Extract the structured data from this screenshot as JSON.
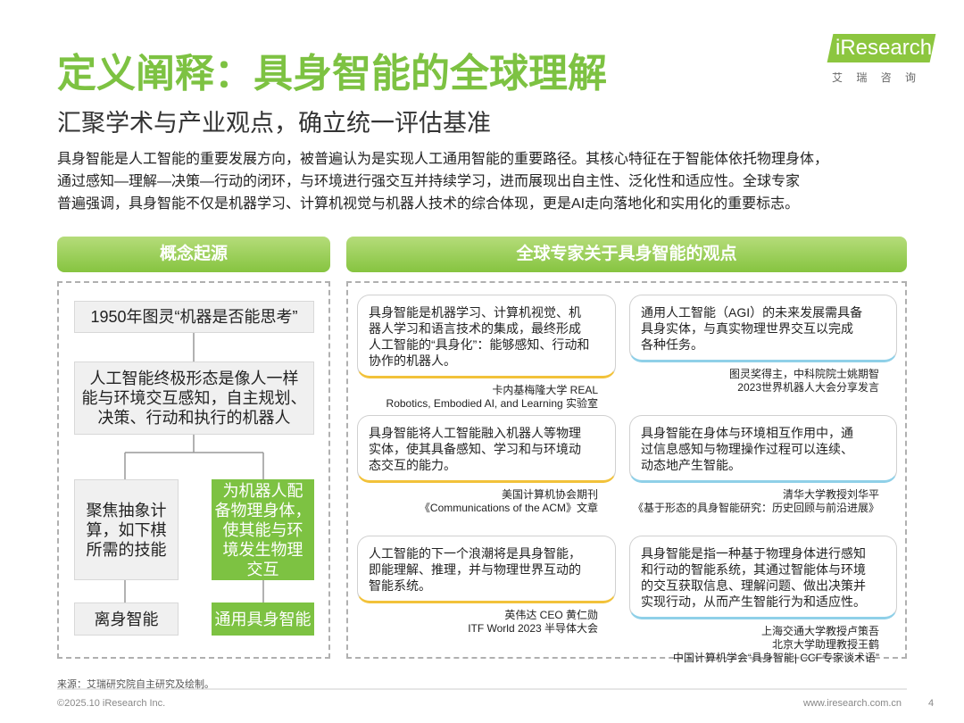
{
  "header": {
    "title": "定义阐释：具身智能的全球理解",
    "subtitle": "汇聚学术与产业观点，确立统一评估基准",
    "logo": "iResearch",
    "logo_sub": "艾 瑞 咨 询"
  },
  "intro": {
    "lines": [
      "具身智能是人工智能的重要发展方向，被普遍认为是实现人工通用智能的重要路径。其核心特征在于智能体依托物理身体，",
      "通过感知—理解—决策—行动的闭环，与环境进行强交互并持续学习，进而展现出自主性、泛化性和适应性。全球专家",
      "普遍强调，具身智能不仅是机器学习、计算机视觉与机器人技术的综合体现，更是AI走向落地化和实用化的重要标志。"
    ]
  },
  "left": {
    "title": "概念起源",
    "boxes": [
      {
        "lines": [
          "1950年图灵“机器是否能思考”"
        ]
      },
      {
        "lines": [
          "人工智能终极形态是像人一样",
          "能与环境交互感知，自主规划、",
          "决策、行动和执行的机器人"
        ]
      },
      {
        "lines": [
          "聚焦抽象计",
          "算，如下棋",
          "所需的技能"
        ]
      },
      {
        "lines": [
          "为机器人配",
          "备物理身体，",
          "使其能与环",
          "境发生物理",
          "交互"
        ]
      },
      {
        "lines": [
          "离身智能"
        ]
      },
      {
        "lines": [
          "通用具身智能"
        ]
      }
    ]
  },
  "right": {
    "title": "全球专家关于具身智能的观点",
    "quotes": [
      {
        "lines": [
          "具身智能是机器学习、计算机视觉、机",
          "器人学习和语言技术的集成，最终形成",
          "人工智能的“具身化”：能够感知、行动和",
          "协作的机器人。"
        ],
        "source": [
          "卡内基梅隆大学 REAL",
          "Robotics, Embodied AI, and Learning 实验室"
        ]
      },
      {
        "lines": [
          "通用人工智能（AGI）的未来发展需具备",
          "具身实体，与真实物理世界交互以完成",
          "各种任务。"
        ],
        "source": [
          "图灵奖得主，中科院院士姚期智",
          "2023世界机器人大会分享发言"
        ]
      },
      {
        "lines": [
          "具身智能将人工智能融入机器人等物理",
          "实体，使其具备感知、学习和与环境动",
          "态交互的能力。"
        ],
        "source": [
          "美国计算机协会期刊",
          "《Communications of the ACM》文章"
        ]
      },
      {
        "lines": [
          "具身智能在身体与环境相互作用中，通",
          "过信息感知与物理操作过程可以连续、",
          "动态地产生智能。"
        ],
        "source": [
          "清华大学教授刘华平",
          "《基于形态的具身智能研究：历史回顾与前沿进展》"
        ]
      },
      {
        "lines": [
          "人工智能的下一个浪潮将是具身智能，",
          "即能理解、推理，并与物理世界互动的",
          "智能系统。"
        ],
        "source": [
          "英伟达 CEO 黄仁勋",
          "ITF World 2023 半导体大会"
        ]
      },
      {
        "lines": [
          "具身智能是指一种基于物理身体进行感知",
          "和行动的智能系统，其通过智能体与环境",
          "的交互获取信息、理解问题、做出决策并",
          "实现行动，从而产生智能行为和适应性。"
        ],
        "source": [
          "上海交通大学教授卢策吾",
          "北京大学助理教授王鹤",
          "中国计算机学会“具身智能| CCF专家谈术语”"
        ]
      }
    ]
  },
  "footer": {
    "source": "来源：艾瑞研究院自主研究及绘制。",
    "copyright": "©2025.10 iResearch Inc.",
    "url": "www.iresearch.com.cn",
    "page": 4
  }
}
